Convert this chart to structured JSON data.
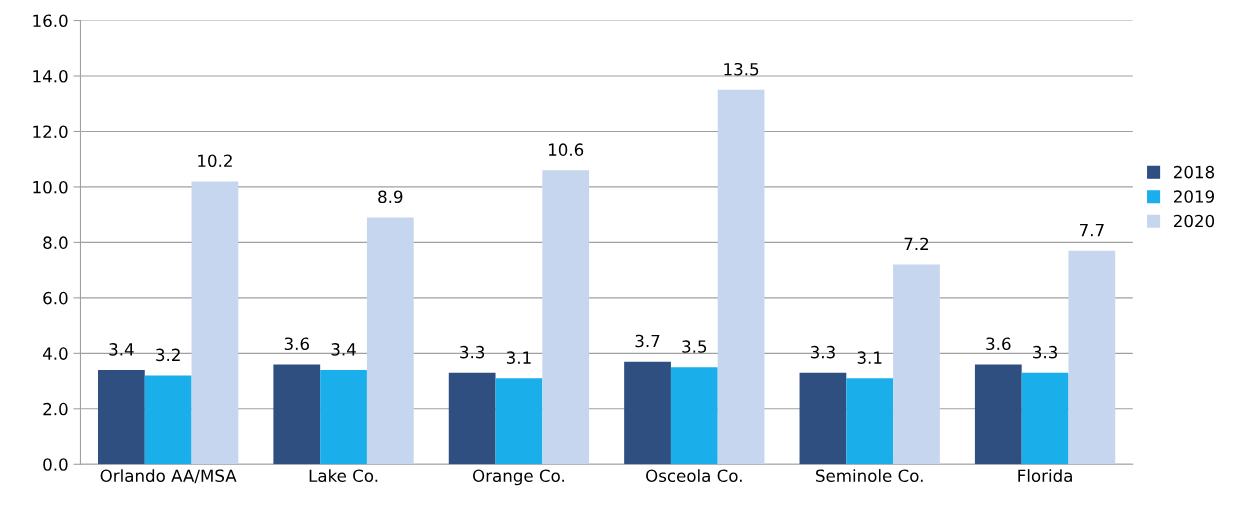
{
  "chart_data": {
    "type": "bar",
    "categories": [
      "Orlando AA/MSA",
      "Lake Co.",
      "Orange Co.",
      "Osceola Co.",
      "Seminole Co.",
      "Florida"
    ],
    "series": [
      {
        "name": "2018",
        "color": "#2e4f80",
        "values": [
          3.4,
          3.6,
          3.3,
          3.7,
          3.3,
          3.6
        ]
      },
      {
        "name": "2019",
        "color": "#1aaeea",
        "values": [
          3.2,
          3.4,
          3.1,
          3.5,
          3.1,
          3.3
        ]
      },
      {
        "name": "2020",
        "color": "#c6d6ee",
        "values": [
          10.2,
          8.9,
          10.6,
          13.5,
          7.2,
          7.7
        ]
      }
    ],
    "ylim": [
      0,
      16
    ],
    "yticks": [
      {
        "value": 0,
        "label": "0.0"
      },
      {
        "value": 2,
        "label": "2.0"
      },
      {
        "value": 4,
        "label": "4.0"
      },
      {
        "value": 6,
        "label": "6.0"
      },
      {
        "value": 8,
        "label": "8.0"
      },
      {
        "value": 10,
        "label": "10.0"
      },
      {
        "value": 12,
        "label": "12.0"
      },
      {
        "value": 14,
        "label": "14.0"
      },
      {
        "value": 16,
        "label": "16.0"
      }
    ],
    "grid": "y",
    "legend": "right",
    "data_labels": true
  }
}
